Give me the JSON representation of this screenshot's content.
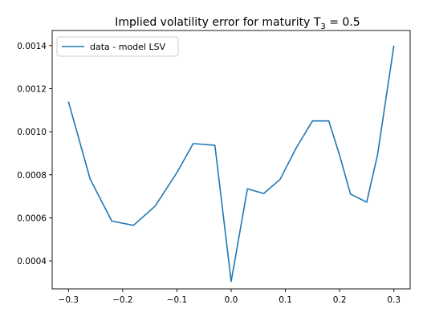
{
  "chart_data": {
    "type": "line",
    "title_main": "Implied volatility error for maturity T",
    "title_sub": "3",
    "title_tail": " = 0.5",
    "xlabel": "",
    "ylabel": "",
    "xlim": [
      -0.33,
      0.33
    ],
    "ylim": [
      0.00027,
      0.00147
    ],
    "grid": false,
    "legend_placement": "top-left",
    "x_ticks": [
      {
        "value": -0.3,
        "label": "−0.3"
      },
      {
        "value": -0.2,
        "label": "−0.2"
      },
      {
        "value": -0.1,
        "label": "−0.1"
      },
      {
        "value": 0.0,
        "label": "0.0"
      },
      {
        "value": 0.1,
        "label": "0.1"
      },
      {
        "value": 0.2,
        "label": "0.2"
      },
      {
        "value": 0.3,
        "label": "0.3"
      }
    ],
    "y_ticks": [
      {
        "value": 0.0004,
        "label": "0.0004"
      },
      {
        "value": 0.0006,
        "label": "0.0006"
      },
      {
        "value": 0.0008,
        "label": "0.0008"
      },
      {
        "value": 0.001,
        "label": "0.0010"
      },
      {
        "value": 0.0012,
        "label": "0.0012"
      },
      {
        "value": 0.0014,
        "label": "0.0014"
      }
    ],
    "series": [
      {
        "name": "data - model  LSV",
        "color": "#1f77b4",
        "x": [
          -0.3,
          -0.26,
          -0.22,
          -0.18,
          -0.14,
          -0.1,
          -0.07,
          -0.03,
          0.0,
          0.03,
          0.06,
          0.09,
          0.12,
          0.15,
          0.18,
          0.2,
          0.22,
          0.25,
          0.27,
          0.3
        ],
        "y": [
          0.00114,
          0.00078,
          0.000585,
          0.000565,
          0.000655,
          0.00081,
          0.000945,
          0.000937,
          0.000305,
          0.000735,
          0.000713,
          0.000778,
          0.000925,
          0.00105,
          0.00105,
          0.00089,
          0.00071,
          0.000673,
          0.000895,
          0.0014
        ]
      }
    ]
  }
}
